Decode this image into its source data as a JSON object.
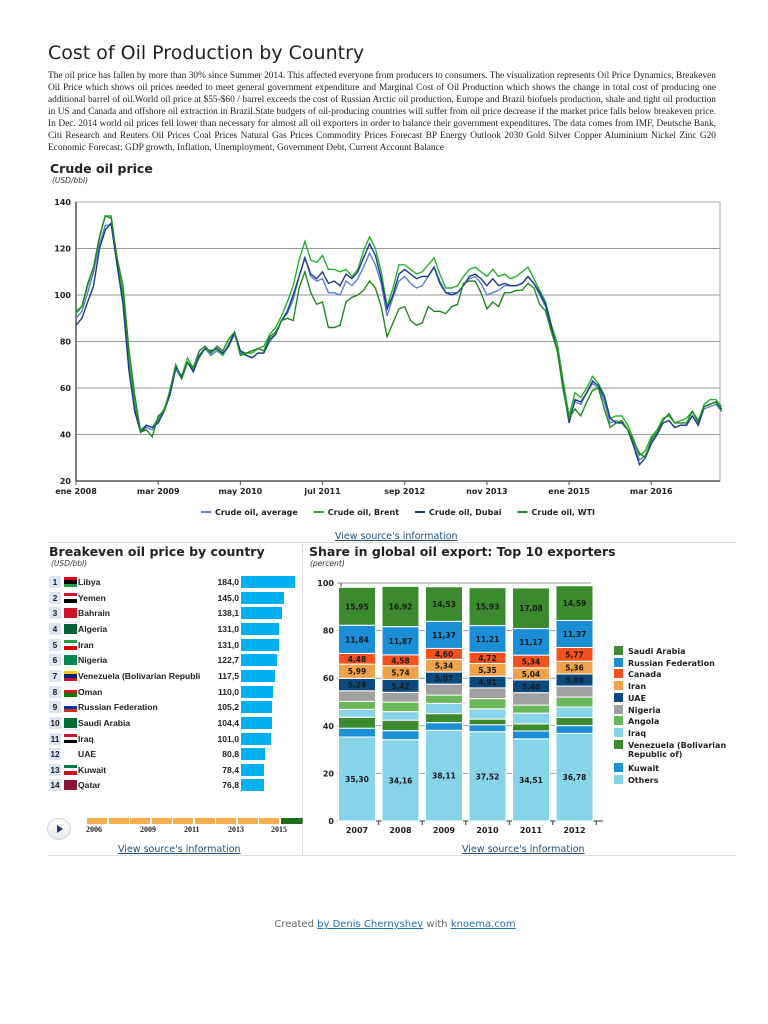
{
  "header": {
    "title": "Cost of Oil Production by Country",
    "intro": "The oil price has fallen by more than 30% since Summer 2014. This affected everyone from producers to consumers. The visualization represents Oil Price Dynamics, Breakeven Oil Price which shows oil prices needed to meet general government expenditure and Marginal Cost of Oil Production which shows the change in total cost of producing one additional barrel of oil.World oil price at $55-$60 / barrel exceeds the cost of Russian Arctic oil production, Europe and Brazil biofuels production, shale and tight oil production in US and Canada and offshore oil extraction in Brazil.State budgets of oil-producing countries will suffer from oil price decrease if the market price falls below breakeven price. In Dec. 2014 world oil prices fell lower than necessary for almost all oil exporters in order to balance their government expenditures.  The data comes from IMF, Deutsche Bank, Citi Research and Reuters Oil Prices Coal Prices Natural Gas Prices Commodity Prices Forecast BP Energy Outlook 2030 Gold Silver Copper Aluminium Nickel Zinc G20 Economic Forecast: GDP growth, Inflation, Unemployment, Government Debt, Current Account Balance"
  },
  "links": {
    "view_source": "View source's information"
  },
  "footer": {
    "created": "Created",
    "author": "by Denis Chernyshev",
    "with": "with",
    "site": "knoema.com"
  },
  "chart_data": [
    {
      "type": "line",
      "title": "Crude oil price",
      "ylabel": "(USD/bbl)",
      "ylim": [
        20,
        140
      ],
      "yticks": [
        20,
        40,
        60,
        80,
        100,
        120,
        140
      ],
      "x_start": "2008-01",
      "x_end": "2017-03",
      "frequency": "monthly",
      "xticks": [
        "ene 2008",
        "mar 2009",
        "may 2010",
        "jul 2011",
        "sep 2012",
        "nov 2013",
        "ene 2015",
        "mar 2016"
      ],
      "grid": true,
      "legend": "bottom",
      "series": [
        {
          "name": "Crude oil, average",
          "color": "#5b7fd6",
          "values": [
            90,
            93,
            101,
            110,
            122,
            130,
            130,
            113,
            98,
            70,
            52,
            41,
            43,
            42,
            46,
            50,
            57,
            68,
            64,
            71,
            67,
            74,
            77,
            74,
            76,
            74,
            78,
            83,
            75,
            74,
            73,
            75,
            75,
            80,
            83,
            89,
            92,
            98,
            108,
            116,
            108,
            106,
            107,
            101,
            101,
            100,
            106,
            104,
            107,
            112,
            118,
            113,
            105,
            91,
            99,
            106,
            108,
            105,
            103,
            104,
            108,
            112,
            106,
            101,
            101,
            101,
            104,
            107,
            108,
            105,
            100,
            101,
            102,
            104,
            104,
            104,
            105,
            108,
            105,
            100,
            95,
            85,
            76,
            60,
            47,
            54,
            53,
            58,
            62,
            60,
            54,
            45,
            46,
            45,
            42,
            36,
            29,
            31,
            37,
            40,
            45,
            46,
            43,
            44,
            44,
            48,
            44,
            51,
            52,
            53,
            50
          ]
        },
        {
          "name": "Crude oil, Brent",
          "color": "#22b22a",
          "values": [
            92,
            95,
            104,
            112,
            125,
            134,
            134,
            115,
            100,
            72,
            53,
            42,
            44,
            43,
            47,
            51,
            58,
            69,
            65,
            73,
            68,
            73,
            77,
            75,
            77,
            74,
            79,
            84,
            76,
            75,
            75,
            77,
            78,
            83,
            86,
            91,
            97,
            104,
            115,
            123,
            115,
            114,
            117,
            111,
            111,
            110,
            111,
            108,
            111,
            119,
            125,
            120,
            110,
            95,
            103,
            113,
            113,
            111,
            109,
            110,
            113,
            116,
            109,
            103,
            103,
            104,
            108,
            111,
            112,
            110,
            108,
            111,
            108,
            109,
            107,
            108,
            110,
            112,
            107,
            102,
            97,
            87,
            79,
            63,
            48,
            58,
            56,
            60,
            65,
            62,
            57,
            47,
            48,
            48,
            44,
            38,
            31,
            33,
            39,
            42,
            47,
            48,
            45,
            46,
            47,
            50,
            45,
            53,
            55,
            55,
            52
          ]
        },
        {
          "name": "Crude oil, Dubai",
          "color": "#1f3a8a",
          "values": [
            87,
            90,
            97,
            104,
            120,
            128,
            131,
            113,
            96,
            68,
            50,
            41,
            44,
            43,
            45,
            50,
            57,
            69,
            65,
            71,
            67,
            74,
            77,
            76,
            77,
            75,
            78,
            84,
            76,
            74,
            73,
            75,
            75,
            81,
            83,
            89,
            93,
            100,
            108,
            116,
            109,
            107,
            110,
            105,
            106,
            104,
            109,
            107,
            110,
            116,
            122,
            117,
            107,
            94,
            100,
            109,
            111,
            109,
            107,
            108,
            108,
            112,
            105,
            101,
            100,
            101,
            104,
            108,
            109,
            107,
            104,
            107,
            104,
            105,
            104,
            104,
            105,
            108,
            105,
            101,
            96,
            86,
            76,
            60,
            45,
            55,
            54,
            58,
            63,
            61,
            56,
            47,
            45,
            45,
            42,
            35,
            27,
            30,
            36,
            40,
            45,
            46,
            43,
            44,
            44,
            48,
            44,
            52,
            53,
            54,
            51
          ]
        },
        {
          "name": "Crude oil, WTI",
          "color": "#1e8a1e",
          "values": [
            93,
            95,
            105,
            112,
            125,
            134,
            133,
            116,
            104,
            77,
            57,
            41,
            42,
            39,
            48,
            50,
            59,
            70,
            64,
            71,
            69,
            76,
            78,
            75,
            78,
            76,
            81,
            84,
            74,
            75,
            76,
            77,
            76,
            82,
            84,
            89,
            90,
            89,
            103,
            110,
            101,
            96,
            97,
            86,
            86,
            87,
            97,
            99,
            100,
            102,
            106,
            103,
            95,
            82,
            88,
            94,
            95,
            89,
            87,
            88,
            95,
            93,
            93,
            92,
            95,
            96,
            105,
            106,
            106,
            101,
            94,
            97,
            95,
            101,
            101,
            102,
            102,
            105,
            103,
            96,
            93,
            84,
            76,
            59,
            47,
            51,
            48,
            54,
            59,
            60,
            51,
            43,
            45,
            46,
            42,
            37,
            32,
            30,
            38,
            41,
            46,
            49,
            45,
            45,
            45,
            50,
            46,
            52,
            53,
            54,
            50
          ]
        }
      ]
    },
    {
      "type": "bar",
      "title": "Breakeven oil price by country",
      "ylabel": "(USD/bbl)",
      "rows": [
        {
          "rank": "1",
          "name": "Libya",
          "value": "184,0",
          "v": 184.0,
          "flag": [
            "#e70013",
            "#000000",
            "#239e46"
          ]
        },
        {
          "rank": "2",
          "name": "Yemen",
          "value": "145,0",
          "v": 145.0,
          "flag": [
            "#ce1126",
            "#ffffff",
            "#000000"
          ]
        },
        {
          "rank": "3",
          "name": "Bahrain",
          "value": "138,1",
          "v": 138.1,
          "flag": [
            "#ce1126"
          ]
        },
        {
          "rank": "4",
          "name": "Algeria",
          "value": "131,0",
          "v": 131.0,
          "flag": [
            "#006233"
          ]
        },
        {
          "rank": "5",
          "name": "Iran",
          "value": "131,0",
          "v": 131.0,
          "flag": [
            "#239f40",
            "#ffffff",
            "#da0000"
          ]
        },
        {
          "rank": "6",
          "name": "Nigeria",
          "value": "122,7",
          "v": 122.7,
          "flag": [
            "#008751"
          ]
        },
        {
          "rank": "7",
          "name": "Venezuela (Bolivarian Republi",
          "value": "117,5",
          "v": 117.5,
          "flag": [
            "#ffcc00",
            "#00247d",
            "#cf142b"
          ]
        },
        {
          "rank": "8",
          "name": "Oman",
          "value": "110,0",
          "v": 110.0,
          "flag": [
            "#ffffff",
            "#db161b",
            "#008000"
          ]
        },
        {
          "rank": "9",
          "name": "Russian Federation",
          "value": "105,2",
          "v": 105.2,
          "flag": [
            "#ffffff",
            "#0039a6",
            "#d52b1e"
          ]
        },
        {
          "rank": "10",
          "name": "Saudi Arabia",
          "value": "104,4",
          "v": 104.4,
          "flag": [
            "#006c35"
          ]
        },
        {
          "rank": "11",
          "name": "Iraq",
          "value": "101,0",
          "v": 101.0,
          "flag": [
            "#ce1126",
            "#ffffff",
            "#000000"
          ]
        },
        {
          "rank": "12",
          "name": "UAE",
          "value": "80,8",
          "v": 80.8,
          "flag": []
        },
        {
          "rank": "13",
          "name": "Kuwait",
          "value": "78,4",
          "v": 78.4,
          "flag": [
            "#007a3d",
            "#ffffff",
            "#ce1126"
          ]
        },
        {
          "rank": "14",
          "name": "Qatar",
          "value": "76,8",
          "v": 76.8,
          "flag": [
            "#8a1538"
          ]
        }
      ],
      "bar_color": "#00b0f0",
      "timeline": {
        "labels": [
          "2006",
          "2009",
          "2011",
          "2013",
          "2015"
        ],
        "selected": "2015"
      }
    },
    {
      "type": "bar",
      "stacked": true,
      "title": "Share in global oil export: Top 10 exporters",
      "ylabel": "(percent)",
      "ylim": [
        0,
        100
      ],
      "yticks": [
        0,
        20,
        40,
        60,
        80,
        100
      ],
      "categories": [
        "2007",
        "2008",
        "2009",
        "2010",
        "2011",
        "2012"
      ],
      "legend": "right",
      "series": [
        {
          "name": "Others",
          "color": "#87d3e8",
          "values": [
            35.3,
            34.16,
            38.11,
            37.52,
            34.51,
            36.78
          ],
          "labeled": true
        },
        {
          "name": "Kuwait",
          "color": "#1a8fd6",
          "values": [
            3.7,
            3.8,
            3.2,
            2.9,
            3.3,
            3.3
          ]
        },
        {
          "name": "Venezuela (Bolivarian Republic of)",
          "color": "#3c8a2e",
          "values": [
            4.6,
            4.4,
            3.8,
            2.4,
            3.0,
            3.4
          ]
        },
        {
          "name": "Iraq",
          "color": "#87d3e8",
          "values": [
            3.3,
            3.6,
            4.3,
            4.3,
            4.5,
            4.4
          ]
        },
        {
          "name": "Angola",
          "color": "#6bb85a",
          "values": [
            3.4,
            4.0,
            3.5,
            4.3,
            3.4,
            4.2
          ]
        },
        {
          "name": "Nigeria",
          "color": "#a0a0a0",
          "values": [
            4.4,
            4.1,
            4.6,
            4.5,
            5.2,
            4.6
          ]
        },
        {
          "name": "UAE",
          "color": "#0b4a7e",
          "values": [
            5.24,
            5.42,
            5.07,
            4.91,
            5.4,
            5.09
          ],
          "labeled": true
        },
        {
          "name": "Iran",
          "color": "#f0a24a",
          "values": [
            5.99,
            5.74,
            5.34,
            5.35,
            5.04,
            5.36
          ],
          "labeled": true
        },
        {
          "name": "Canada",
          "color": "#f4511e",
          "values": [
            4.48,
            4.58,
            4.6,
            4.72,
            5.34,
            5.77
          ],
          "labeled": true
        },
        {
          "name": "Russian Federation",
          "color": "#1a8fd6",
          "values": [
            11.84,
            11.87,
            11.37,
            11.21,
            11.17,
            11.37
          ],
          "labeled": true
        },
        {
          "name": "Saudi Arabia",
          "color": "#3c8a2e",
          "values": [
            15.95,
            16.92,
            14.53,
            15.93,
            17.08,
            14.59
          ],
          "labeled": true
        }
      ],
      "legend_order": [
        "Saudi Arabia",
        "Russian Federation",
        "Canada",
        "Iran",
        "UAE",
        "Nigeria",
        "Angola",
        "Iraq",
        "Venezuela (Bolivarian Republic of)",
        "Kuwait",
        "Others"
      ]
    }
  ]
}
